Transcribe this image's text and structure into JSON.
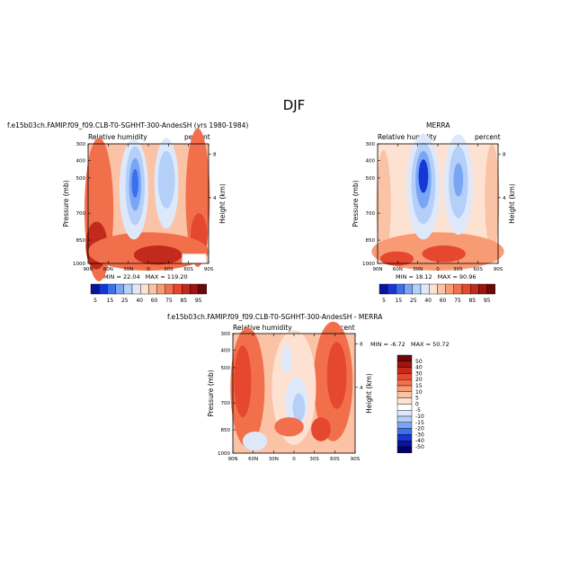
{
  "title": "DJF",
  "colors": {
    "blues": [
      "#08149a",
      "#1437d6",
      "#3c6ef0",
      "#78a6f4",
      "#b4cff8",
      "#dde9fb"
    ],
    "reds": [
      "#fde2d2",
      "#fbc3a6",
      "#f89b74",
      "#f26f4c",
      "#e5472f",
      "#c42a1c",
      "#9d1410",
      "#6e0806"
    ]
  },
  "chart_data": [
    {
      "type": "heatmap",
      "title": "f.e15b03ch.FAMIP.f09_f09.CLB-T0-SGHHT-300-AndesSH (yrs 1980-1984)",
      "variable": "Relative humidity",
      "units": "percent",
      "xlabel": "",
      "ylabel": "Pressure (mb)",
      "y2label": "Height (km)",
      "x_ticks": [
        "90N",
        "60N",
        "30N",
        "0",
        "30S",
        "60S",
        "90S"
      ],
      "y_ticks": [
        300,
        400,
        500,
        700,
        850,
        1000
      ],
      "y2_ticks": [
        8,
        4
      ],
      "ylim": [
        1000,
        300
      ],
      "stats": {
        "min_label": "MIN = ",
        "min": "22.04",
        "max_label": "MAX = ",
        "max": "119.20"
      },
      "colorbar": {
        "orientation": "horizontal",
        "labels": [
          "5",
          "15",
          "25",
          "40",
          "60",
          "75",
          "85",
          "95"
        ]
      }
    },
    {
      "type": "heatmap",
      "title": "MERRA",
      "variable": "Relative humidity",
      "units": "percent",
      "xlabel": "",
      "ylabel": "Pressure (mb)",
      "y2label": "Height (km)",
      "x_ticks": [
        "90N",
        "60N",
        "30N",
        "0",
        "30S",
        "60S",
        "90S"
      ],
      "y_ticks": [
        300,
        400,
        500,
        700,
        850,
        1000
      ],
      "y2_ticks": [
        8,
        4
      ],
      "ylim": [
        1000,
        300
      ],
      "stats": {
        "min_label": "MIN = ",
        "min": "18.12",
        "max_label": "MAX = ",
        "max": "90.96"
      },
      "colorbar": {
        "orientation": "horizontal",
        "labels": [
          "5",
          "15",
          "25",
          "40",
          "60",
          "75",
          "85",
          "95"
        ]
      }
    },
    {
      "type": "heatmap",
      "title": "f.e15b03ch.FAMIP.f09_f09.CLB-T0-SGHHT-300-AndesSH - MERRA",
      "variable": "Relative humidity",
      "units": "percent",
      "xlabel": "",
      "ylabel": "Pressure (mb)",
      "y2label": "Height (km)",
      "x_ticks": [
        "90N",
        "60N",
        "30N",
        "0",
        "30S",
        "60S",
        "90S"
      ],
      "y_ticks": [
        300,
        400,
        500,
        700,
        850,
        1000
      ],
      "y2_ticks": [
        8,
        4
      ],
      "ylim": [
        1000,
        300
      ],
      "stats": {
        "min_label": "MIN = ",
        "min": "-6.72",
        "max_label": "MAX = ",
        "max": "50.72"
      },
      "colorbar": {
        "orientation": "vertical",
        "labels": [
          "50",
          "40",
          "30",
          "20",
          "15",
          "10",
          "5",
          "0",
          "-5",
          "-10",
          "-15",
          "-20",
          "-30",
          "-40",
          "-50"
        ]
      }
    }
  ]
}
